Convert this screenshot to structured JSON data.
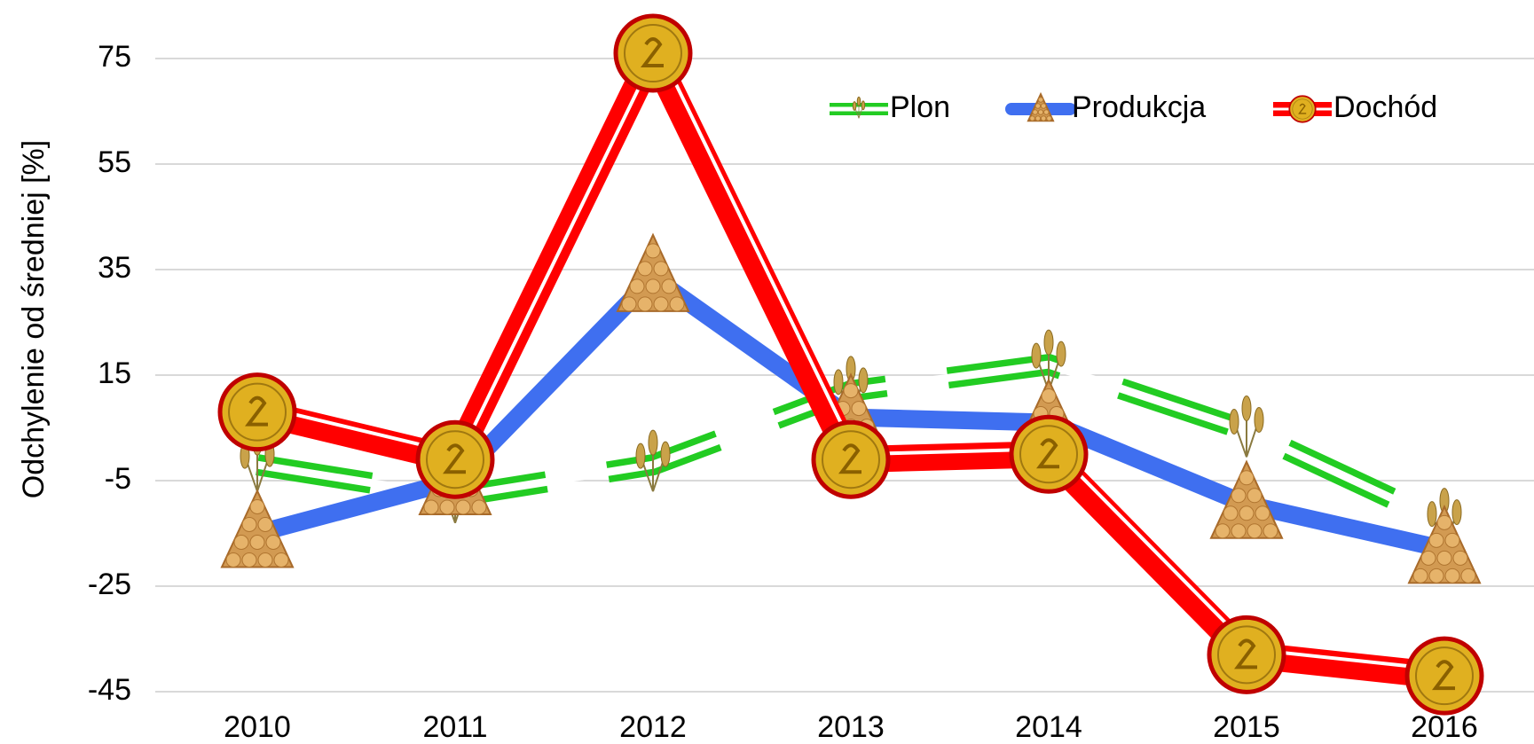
{
  "chart_data": {
    "type": "line",
    "y_label": "Odchylenie od średniej [%]",
    "categories": [
      "2010",
      "2011",
      "2012",
      "2013",
      "2014",
      "2015",
      "2016"
    ],
    "series": [
      {
        "name": "Plon",
        "color": "#22cc22",
        "values": [
          -2,
          -8,
          -2,
          12,
          17,
          4.5,
          -13
        ]
      },
      {
        "name": "Produkcja",
        "color": "#3f6ff0",
        "values": [
          -15,
          -5,
          33.5,
          7,
          6,
          -9.5,
          -18
        ]
      },
      {
        "name": "Dochód",
        "color": "#ff0000",
        "values": [
          8,
          -1,
          76,
          -1,
          0,
          -38,
          -42
        ]
      }
    ],
    "ylim": [
      -45,
      75
    ],
    "yticks": [
      75,
      55,
      35,
      15,
      -5,
      -25,
      -45
    ],
    "grid": true,
    "legend": "upper right"
  }
}
